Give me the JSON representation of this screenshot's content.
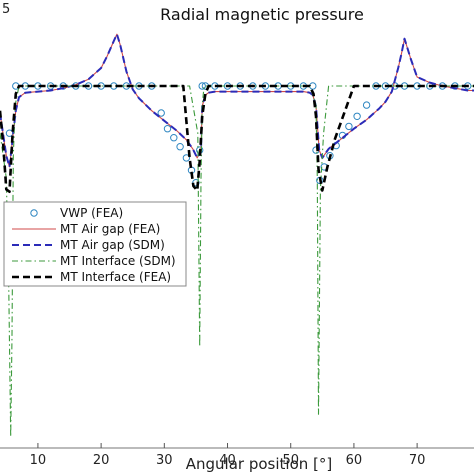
{
  "chart_data": {
    "type": "line",
    "title": "Radial magnetic pressure",
    "xlabel": "Angular position [°]",
    "ylabel": "",
    "corner_label": "5",
    "xlim": [
      4,
      79
    ],
    "ylim": [
      -32,
      5
    ],
    "x_ticks": [
      10,
      20,
      30,
      40,
      50,
      60,
      70
    ],
    "grid": false,
    "legend_position": "middle-left",
    "series": [
      {
        "name": "VWP (FEA)",
        "style": "markers",
        "color": "#2e86c1",
        "x": [
          5.5,
          6.5,
          8,
          10,
          12,
          14,
          16,
          18,
          20,
          22,
          24,
          26,
          28,
          29.5,
          30.5,
          31.5,
          32.5,
          33.5,
          34.3,
          35,
          35.6,
          36,
          36.5,
          38,
          40,
          42,
          44,
          46,
          48,
          50,
          52,
          53.5,
          54,
          54.6,
          55.3,
          56.2,
          57.2,
          58.2,
          59.2,
          60.5,
          62,
          63.5,
          65,
          66.5,
          68,
          70,
          72,
          74,
          76,
          78
        ],
        "y": [
          -4,
          0.2,
          0.2,
          0.2,
          0.2,
          0.2,
          0.2,
          0.2,
          0.2,
          0.2,
          0.2,
          0.2,
          0.2,
          -2.2,
          -3.6,
          -4.4,
          -5.2,
          -6.2,
          -7.3,
          -8.4,
          -5.5,
          0.2,
          0.2,
          0.2,
          0.2,
          0.2,
          0.2,
          0.2,
          0.2,
          0.2,
          0.2,
          0.2,
          -5.5,
          -8.2,
          -7,
          -6,
          -5.1,
          -4.2,
          -3.4,
          -2.5,
          -1.5,
          0.2,
          0.2,
          0.2,
          0.2,
          0.2,
          0.2,
          0.2,
          0.2,
          0.2
        ]
      },
      {
        "name": "MT Air gap (FEA)",
        "style": "solid",
        "color": "#d04a4a",
        "x": [
          4,
          5,
          5.5,
          6,
          6.5,
          7,
          8,
          10,
          12,
          14,
          16,
          18,
          20,
          21,
          22,
          22.5,
          23,
          24,
          25,
          26,
          28,
          30,
          32,
          33.5,
          34.5,
          35.2,
          35.8,
          36,
          36.5,
          37,
          38,
          40,
          42,
          44,
          46,
          48,
          50,
          52,
          53,
          53.5,
          54,
          54.5,
          55,
          56,
          58,
          60,
          62,
          64,
          65,
          66,
          67,
          67.5,
          68,
          69,
          70,
          72,
          74,
          76,
          78,
          79
        ],
        "y": [
          -2.2,
          -6,
          -7,
          -4.5,
          -2,
          -0.8,
          -0.4,
          -0.3,
          -0.2,
          0,
          0.3,
          0.8,
          1.8,
          2.9,
          4.2,
          4.8,
          3.9,
          1.5,
          -0.1,
          -0.9,
          -2,
          -2.9,
          -3.8,
          -4.6,
          -5.4,
          -6.2,
          -5.5,
          -1.6,
          -0.6,
          -0.4,
          -0.3,
          -0.3,
          -0.3,
          -0.3,
          -0.3,
          -0.3,
          -0.3,
          -0.3,
          -0.4,
          -0.6,
          -1.6,
          -5.5,
          -6.2,
          -5.4,
          -4.5,
          -3.6,
          -2.8,
          -1.8,
          -1.2,
          -0.3,
          1.8,
          3,
          4.4,
          2.6,
          1,
          0.5,
          0.2,
          0,
          -0.2,
          -0.2
        ]
      },
      {
        "name": "MT Air gap (SDM)",
        "style": "dashed",
        "color": "#2b2bb8",
        "x": [
          4,
          5,
          5.5,
          6,
          6.5,
          7,
          8,
          10,
          12,
          14,
          16,
          18,
          20,
          21,
          22,
          22.5,
          23,
          24,
          25,
          26,
          28,
          30,
          32,
          33.5,
          34.5,
          35.2,
          35.8,
          36,
          36.5,
          37,
          38,
          40,
          42,
          44,
          46,
          48,
          50,
          52,
          53,
          53.5,
          54,
          54.5,
          55,
          56,
          58,
          60,
          62,
          64,
          65,
          66,
          67,
          67.5,
          68,
          69,
          70,
          72,
          74,
          76,
          78,
          79
        ],
        "y": [
          -2.2,
          -6,
          -7,
          -4.5,
          -2,
          -0.8,
          -0.4,
          -0.3,
          -0.2,
          0,
          0.3,
          0.8,
          1.8,
          2.9,
          4.2,
          4.8,
          3.9,
          1.5,
          -0.1,
          -0.9,
          -2,
          -2.9,
          -3.8,
          -4.6,
          -5.4,
          -6.2,
          -5.5,
          -1.6,
          -0.6,
          -0.4,
          -0.3,
          -0.3,
          -0.3,
          -0.3,
          -0.3,
          -0.3,
          -0.3,
          -0.3,
          -0.4,
          -0.6,
          -1.6,
          -5.5,
          -6.2,
          -5.4,
          -4.5,
          -3.6,
          -2.8,
          -1.8,
          -1.2,
          -0.3,
          1.8,
          3,
          4.4,
          2.6,
          1,
          0.5,
          0.2,
          0,
          -0.2,
          -0.2
        ]
      },
      {
        "name": "MT Interface (SDM)",
        "style": "dashdot",
        "color": "#3c9a3c",
        "x": [
          4,
          4.5,
          5,
          5.4,
          5.7,
          5.9,
          6.1,
          6.4,
          7,
          8,
          10,
          14,
          20,
          28,
          34,
          35.3,
          35.6,
          35.8,
          36,
          36.3,
          37,
          40,
          46,
          50,
          53,
          54,
          54.2,
          54.4,
          54.7,
          55.2,
          56,
          60,
          66,
          72,
          79
        ],
        "y": [
          -4,
          -6,
          -8,
          -18,
          -31,
          -22,
          -6,
          -1.5,
          0.2,
          0.2,
          0.2,
          0.2,
          0.2,
          0.2,
          0.2,
          -4,
          -23,
          -8,
          -1.5,
          0.2,
          0.2,
          0.2,
          0.2,
          0.2,
          0.2,
          -1.5,
          -8,
          -29,
          -9,
          -4,
          0.2,
          0.2,
          0.2,
          0.2,
          0.2
        ]
      },
      {
        "name": "MT Interface (FEA)",
        "style": "dashed",
        "color": "#000000",
        "x": [
          4,
          4.5,
          5,
          5.5,
          6,
          6.5,
          7,
          8,
          10,
          14,
          20,
          28,
          33,
          34,
          34.6,
          35.2,
          35.6,
          36,
          36.5,
          37,
          40,
          46,
          50,
          53,
          53.6,
          54,
          54.4,
          55,
          55.8,
          57,
          60,
          66,
          72,
          79
        ],
        "y": [
          -2,
          -5,
          -9,
          -9.2,
          -4,
          -0.5,
          0.2,
          0.2,
          0.2,
          0.2,
          0.2,
          0.2,
          0.2,
          -6.2,
          -8.7,
          -9.1,
          -6.5,
          -2.5,
          -0.5,
          0.2,
          0.2,
          0.2,
          0.2,
          0.2,
          -0.5,
          -2.5,
          -7.2,
          -9.1,
          -7,
          -4.5,
          0.2,
          0.2,
          0.2,
          0.2
        ]
      }
    ]
  }
}
